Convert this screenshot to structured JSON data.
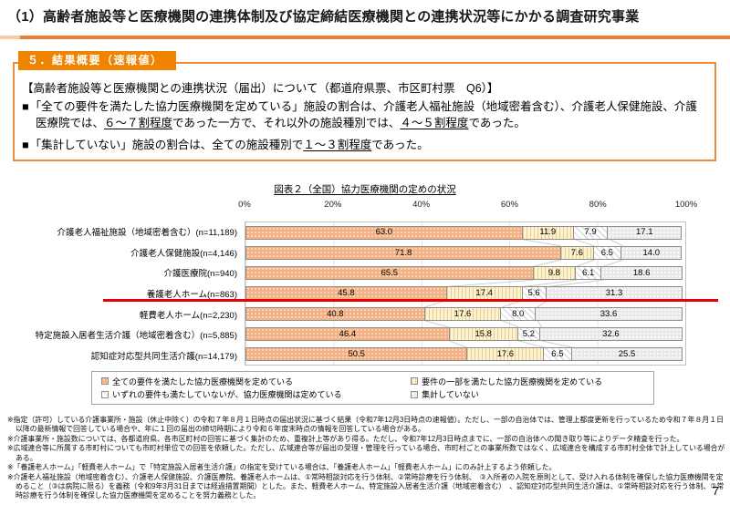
{
  "page": {
    "title": "（1）高齢者施設等と医療機関の連携体制及び協定締結医療機関との連携状況等にかかる調査研究事業",
    "page_number": "7"
  },
  "colors": {
    "accent_orange": "#ED7D31",
    "badge_orange": "#F08300",
    "red_annotation": "#E60000"
  },
  "section": {
    "badge": "５．結果概要（速報値）",
    "heading": "【高齢者施設等と医療機関との連携状況（届出）について（都道府県票、市区町村票　Q6）】",
    "bullets": [
      {
        "marker": "■",
        "segments": [
          {
            "text": "「全ての要件を満たした協力医療機関を定めている」施設の割合は、介護老人福祉施設（地域密着含む）、介護老人保健施設、介護医療院では、",
            "underline": false
          },
          {
            "text": "６～７割程度",
            "underline": true
          },
          {
            "text": "であった一方で、それ以外の施設種別では、",
            "underline": false
          },
          {
            "text": "４～５割程度",
            "underline": true
          },
          {
            "text": "であった。",
            "underline": false
          }
        ]
      },
      {
        "marker": "■",
        "segments": [
          {
            "text": "「集計していない」施設の割合は、全ての施設種別で",
            "underline": false
          },
          {
            "text": "１～３割程度",
            "underline": true
          },
          {
            "text": "であった。",
            "underline": false
          }
        ]
      }
    ]
  },
  "chart_data": {
    "type": "bar",
    "orientation": "horizontal-stacked",
    "title": "図表２（全国）協力医療機関の定めの状況",
    "x_ticks": [
      "0%",
      "20%",
      "40%",
      "60%",
      "80%",
      "100%"
    ],
    "xlim": [
      0,
      100
    ],
    "grid": true,
    "legend_position": "bottom",
    "categories": [
      "介護老人福祉施設（地域密着含む）(n=11,189)",
      "介護老人保健施設(n=4,146)",
      "介護医療院(n=940)",
      "養護老人ホーム(n=863)",
      "軽費老人ホーム(n=2,230)",
      "特定施設入居者生活介護（地域密着含む）(n=5,885)",
      "認知症対応型共同生活介護(n=14,179)"
    ],
    "series": [
      {
        "name": "全ての要件を満たした協力医療機関を定めている",
        "color": "#F4B183",
        "pattern": "orange-dots",
        "values": [
          63.0,
          71.8,
          65.5,
          45.8,
          40.8,
          46.4,
          50.5
        ]
      },
      {
        "name": "要件の一部を満たした協力医療機関を定めている",
        "color": "#FFF2CC",
        "pattern": "yellow-vlines",
        "values": [
          11.9,
          7.6,
          9.8,
          17.4,
          17.6,
          15.8,
          17.6
        ]
      },
      {
        "name": "いずれの要件も満たしていないが、協力医療機関は定めている",
        "color": "#FFFFFF",
        "pattern": "white-diag",
        "values": [
          7.9,
          6.5,
          6.1,
          5.6,
          8.0,
          5.2,
          6.5
        ]
      },
      {
        "name": "集計していない",
        "color": "#E9E9E9",
        "pattern": "gray-dots",
        "values": [
          17.1,
          14.0,
          18.6,
          31.3,
          33.6,
          32.6,
          25.5
        ]
      }
    ],
    "annotations": [
      {
        "type": "red-underline",
        "color": "#E60000",
        "target_category": "養護老人ホーム(n=863)"
      }
    ]
  },
  "footnotes": [
    "※指定（許可）している介護事業所・施設（休止中除く）の令和７年８月１日時点の届出状況に基づく結果（令和7年12月3日時点の速報値）。ただし、一部の自治体では、管理上都度更新を行っているため令和７年８月１日以降の最新情報で回答している場合や、年に１回の届出の締切時期により令和６年度末時点の情報を回答している場合がある。",
    "※介護事業所・施設数については、各都道府県、各市区町村の回答に基づく集計のため、重複計上等があり得る。ただし、令和7年12月3日時点までに、一部の自治体への聞き取り等によりデータ精査を行った。",
    "※広域連合等に所属する市町村についても市町村単位での回答を依頼した。ただし、広域連合等が届出の受理・管理を行っている場合、市町村ごとの事業所数ではなく、広域連合を構成する市町村全体で計上している場合がある。",
    "※「養護老人ホーム」「軽費老人ホーム」で「特定施設入居者生活介護」の指定を受けている場合は、「養護老人ホーム」「軽費老人ホーム」にのみ計上するよう依頼した。",
    "※介護老人福祉施設（地域密着含む）、介護老人保健施設、介護医療院、養護老人ホームは、①常時相談対応を行う体制、②常時診療を行う体制、　③入所者の入院を原則として、受け入れる体制を確保した協力医療機関を定めること（③は病院に限る）を義務（令和9年3月31日までは経過措置期間）とした。また、軽費老人ホーム、特定施設入居者生活介護（地域密着含む）　、認知症対応型共同生活介護は、①常時相談対応を行う体制、②常時診療を行う体制を確保した協力医療機関を定めることを努力義務とした。"
  ]
}
